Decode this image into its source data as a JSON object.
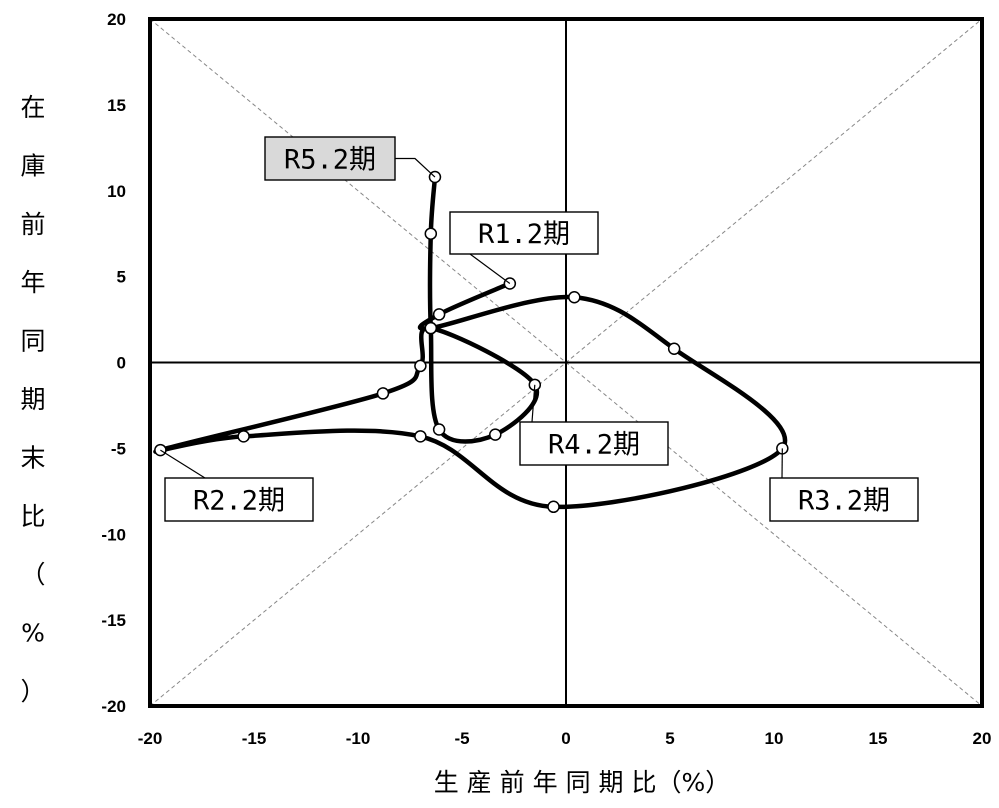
{
  "chart_data": {
    "type": "scatter",
    "xlabel": "生 産 前 年 同 期 比（%）",
    "ylabel_chars": [
      "在",
      "庫",
      "前",
      "年",
      "同",
      "期",
      "末",
      "比",
      "（",
      "%",
      "）"
    ],
    "xlim": [
      -20,
      20
    ],
    "ylim": [
      -20,
      20
    ],
    "xticks": [
      -20,
      -15,
      -10,
      -5,
      0,
      5,
      10,
      15,
      20
    ],
    "yticks": [
      -20,
      -15,
      -10,
      -5,
      0,
      5,
      10,
      15,
      20
    ],
    "grid": false,
    "reference_lines": [
      "x=0",
      "y=0",
      "y=x (dashed)",
      "y=-x (dashed)"
    ],
    "series": [
      {
        "points": [
          {
            "x": -2.7,
            "y": 4.6
          },
          {
            "x": -6.1,
            "y": 2.8
          },
          {
            "x": -6.5,
            "y": 2.0
          },
          {
            "x": 0.4,
            "y": 3.8
          },
          {
            "x": 5.2,
            "y": 0.8
          },
          {
            "x": 10.4,
            "y": -5.0
          },
          {
            "x": -0.6,
            "y": -8.4
          },
          {
            "x": -7.0,
            "y": -4.3
          },
          {
            "x": -15.5,
            "y": -4.3
          },
          {
            "x": -19.5,
            "y": -5.1
          },
          {
            "x": -8.8,
            "y": -1.8
          },
          {
            "x": -7.0,
            "y": -0.2
          },
          {
            "x": -6.5,
            "y": 2.0
          },
          {
            "x": -1.5,
            "y": -1.3
          },
          {
            "x": -3.4,
            "y": -4.2
          },
          {
            "x": -6.1,
            "y": -3.9
          },
          {
            "x": -6.5,
            "y": 2.0
          },
          {
            "x": -6.5,
            "y": 7.5
          },
          {
            "x": -6.3,
            "y": 10.8
          }
        ]
      }
    ],
    "annotations": [
      {
        "text": "R1.2期",
        "x": -2.7,
        "y": 4.6,
        "highlight": false
      },
      {
        "text": "R2.2期",
        "x": -19.5,
        "y": -5.1,
        "highlight": false
      },
      {
        "text": "R3.2期",
        "x": 10.4,
        "y": -5.0,
        "highlight": false
      },
      {
        "text": "R4.2期",
        "x": -1.5,
        "y": -1.3,
        "highlight": false
      },
      {
        "text": "R5.2期",
        "x": -6.3,
        "y": 10.8,
        "highlight": true
      }
    ]
  }
}
